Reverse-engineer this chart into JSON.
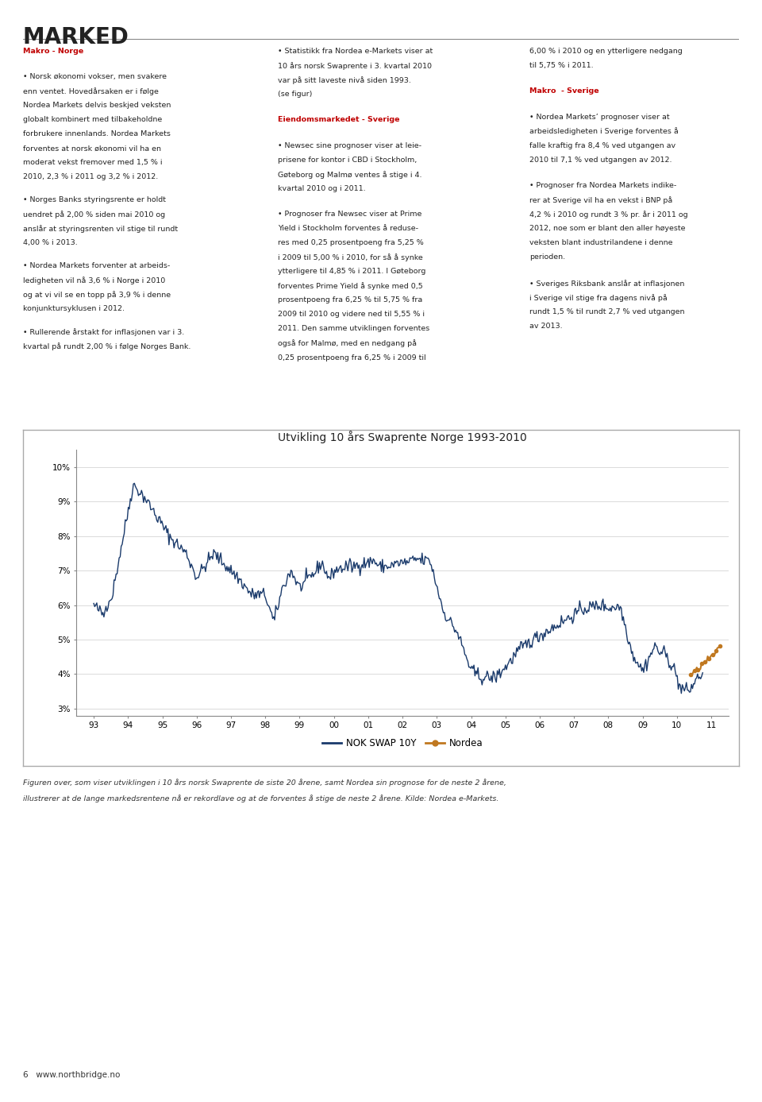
{
  "title": "Utvikling 10 års Swaprente Norge 1993-2010",
  "page_title": "MARKED",
  "heading_color": "#c00000",
  "background_color": "#ffffff",
  "chart_bg": "#ffffff",
  "nok_color": "#1a3a6b",
  "nordea_color": "#c07820",
  "ylabel_ticks": [
    "3%",
    "4%",
    "5%",
    "6%",
    "7%",
    "8%",
    "9%",
    "10%"
  ],
  "ylabel_values": [
    3,
    4,
    5,
    6,
    7,
    8,
    9,
    10
  ],
  "xlabels": [
    "93",
    "94",
    "95",
    "96",
    "97",
    "98",
    "99",
    "00",
    "01",
    "02",
    "03",
    "04",
    "05",
    "06",
    "07",
    "08",
    "09",
    "10",
    "11"
  ],
  "ylim": [
    2.8,
    10.5
  ],
  "xlim_start": 1992.5,
  "xlim_end": 2011.5,
  "legend_label_nok": "NOK SWAP 10Y",
  "legend_label_nordea": "Nordea",
  "caption": "Figuren over, som viser utviklingen i 10 års norsk Swaprente de siste 20 årene, samt Nordea sin prognose for de neste 2 årene,",
  "caption2": "illustrerer at de lange markedsrentene nå er rekordlave og at de forventes å stige de neste 2 årene. Kilde: Nordea e-Markets.",
  "footer": "6   www.northbridge.no"
}
